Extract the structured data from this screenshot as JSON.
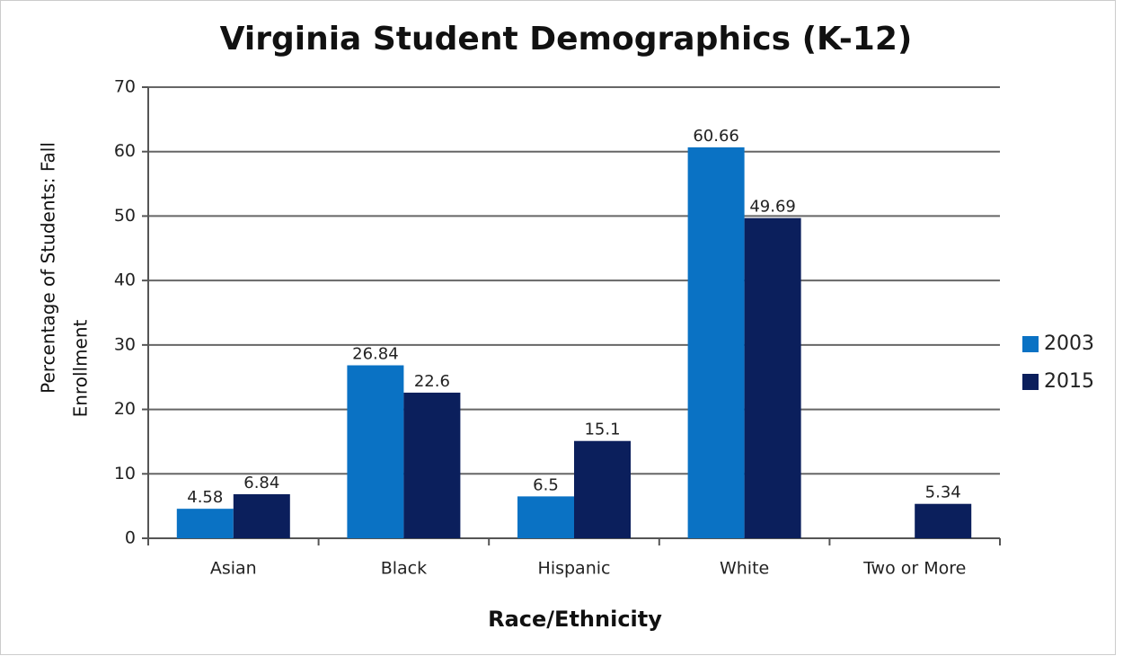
{
  "chart_data": {
    "type": "bar",
    "title": "Virginia Student Demographics (K-12)",
    "xlabel": "Race/Ethnicity",
    "ylabel": [
      "Percentage of Students: Fall",
      "Enrollment"
    ],
    "categories": [
      "Asian",
      "Black",
      "Hispanic",
      "White",
      "Two or More"
    ],
    "series": [
      {
        "name": "2003",
        "color": "#0a72c4",
        "values": [
          4.58,
          26.84,
          6.5,
          60.66,
          null
        ]
      },
      {
        "name": "2015",
        "color": "#0b1f5c",
        "values": [
          6.84,
          22.6,
          15.1,
          49.69,
          5.34
        ]
      }
    ],
    "ylim": [
      0,
      70
    ],
    "yticks": [
      0,
      10,
      20,
      30,
      40,
      50,
      60,
      70
    ],
    "grid": true,
    "legend": "right"
  }
}
